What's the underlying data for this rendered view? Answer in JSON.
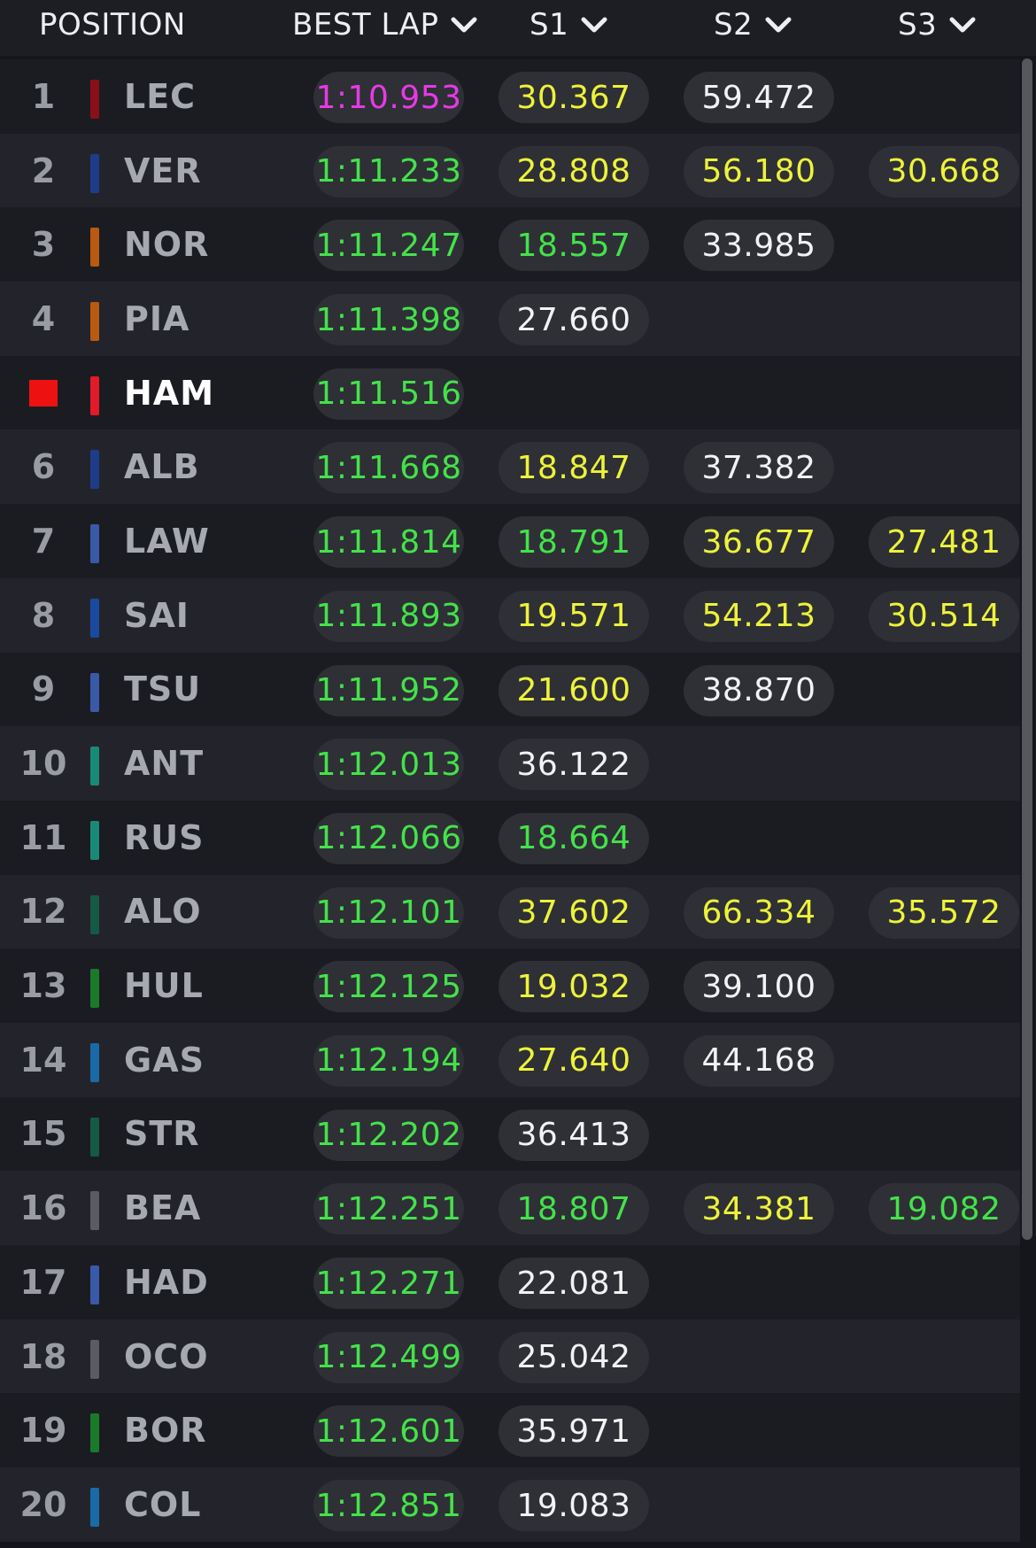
{
  "header": {
    "position": "POSITION",
    "best_lap": "BEST LAP",
    "s1": "S1",
    "s2": "S2",
    "s3": "S3"
  },
  "colors": {
    "green": "#44e24a",
    "yellow": "#eef23a",
    "purple": "#e73ae6",
    "white": "#f2f2f4",
    "red_flag": "#ee1111"
  },
  "rows": [
    {
      "pos": "1",
      "code": "LEC",
      "team_color": "#8a0f1a",
      "best": "1:10.953",
      "best_color": "purple",
      "s1": "30.367",
      "s1_color": "yellow",
      "s2": "59.472",
      "s2_color": "white",
      "s3": "",
      "s3_color": ""
    },
    {
      "pos": "2",
      "code": "VER",
      "team_color": "#1f3c8a",
      "best": "1:11.233",
      "best_color": "green",
      "s1": "28.808",
      "s1_color": "yellow",
      "s2": "56.180",
      "s2_color": "yellow",
      "s3": "30.668",
      "s3_color": "yellow"
    },
    {
      "pos": "3",
      "code": "NOR",
      "team_color": "#b85a12",
      "best": "1:11.247",
      "best_color": "green",
      "s1": "18.557",
      "s1_color": "green",
      "s2": "33.985",
      "s2_color": "white",
      "s3": "",
      "s3_color": ""
    },
    {
      "pos": "4",
      "code": "PIA",
      "team_color": "#b85a12",
      "best": "1:11.398",
      "best_color": "green",
      "s1": "27.660",
      "s1_color": "white",
      "s2": "",
      "s2_color": "",
      "s3": "",
      "s3_color": ""
    },
    {
      "pos": "",
      "pos_marker": "red-square",
      "code": "HAM",
      "highlight": true,
      "team_color": "#e21a2a",
      "best": "1:11.516",
      "best_color": "green",
      "s1": "",
      "s1_color": "",
      "s2": "",
      "s2_color": "",
      "s3": "",
      "s3_color": ""
    },
    {
      "pos": "6",
      "code": "ALB",
      "team_color": "#1f3c8a",
      "best": "1:11.668",
      "best_color": "green",
      "s1": "18.847",
      "s1_color": "yellow",
      "s2": "37.382",
      "s2_color": "white",
      "s3": "",
      "s3_color": ""
    },
    {
      "pos": "7",
      "code": "LAW",
      "team_color": "#3a5aa8",
      "best": "1:11.814",
      "best_color": "green",
      "s1": "18.791",
      "s1_color": "green",
      "s2": "36.677",
      "s2_color": "yellow",
      "s3": "27.481",
      "s3_color": "yellow"
    },
    {
      "pos": "8",
      "code": "SAI",
      "team_color": "#1a4aa0",
      "best": "1:11.893",
      "best_color": "green",
      "s1": "19.571",
      "s1_color": "yellow",
      "s2": "54.213",
      "s2_color": "yellow",
      "s3": "30.514",
      "s3_color": "yellow"
    },
    {
      "pos": "9",
      "code": "TSU",
      "team_color": "#3a5aa8",
      "best": "1:11.952",
      "best_color": "green",
      "s1": "21.600",
      "s1_color": "yellow",
      "s2": "38.870",
      "s2_color": "white",
      "s3": "",
      "s3_color": ""
    },
    {
      "pos": "10",
      "code": "ANT",
      "team_color": "#1a8a78",
      "best": "1:12.013",
      "best_color": "green",
      "s1": "36.122",
      "s1_color": "white",
      "s2": "",
      "s2_color": "",
      "s3": "",
      "s3_color": ""
    },
    {
      "pos": "11",
      "code": "RUS",
      "team_color": "#1a8a78",
      "best": "1:12.066",
      "best_color": "green",
      "s1": "18.664",
      "s1_color": "green",
      "s2": "",
      "s2_color": "",
      "s3": "",
      "s3_color": ""
    },
    {
      "pos": "12",
      "code": "ALO",
      "team_color": "#155a44",
      "best": "1:12.101",
      "best_color": "green",
      "s1": "37.602",
      "s1_color": "yellow",
      "s2": "66.334",
      "s2_color": "yellow",
      "s3": "35.572",
      "s3_color": "yellow"
    },
    {
      "pos": "13",
      "code": "HUL",
      "team_color": "#1a7a2a",
      "best": "1:12.125",
      "best_color": "green",
      "s1": "19.032",
      "s1_color": "yellow",
      "s2": "39.100",
      "s2_color": "white",
      "s3": "",
      "s3_color": ""
    },
    {
      "pos": "14",
      "code": "GAS",
      "team_color": "#1a6aa8",
      "best": "1:12.194",
      "best_color": "green",
      "s1": "27.640",
      "s1_color": "yellow",
      "s2": "44.168",
      "s2_color": "white",
      "s3": "",
      "s3_color": ""
    },
    {
      "pos": "15",
      "code": "STR",
      "team_color": "#155a44",
      "best": "1:12.202",
      "best_color": "green",
      "s1": "36.413",
      "s1_color": "white",
      "s2": "",
      "s2_color": "",
      "s3": "",
      "s3_color": ""
    },
    {
      "pos": "16",
      "code": "BEA",
      "team_color": "#5a5c62",
      "best": "1:12.251",
      "best_color": "green",
      "s1": "18.807",
      "s1_color": "green",
      "s2": "34.381",
      "s2_color": "yellow",
      "s3": "19.082",
      "s3_color": "green"
    },
    {
      "pos": "17",
      "code": "HAD",
      "team_color": "#3a5aa8",
      "best": "1:12.271",
      "best_color": "green",
      "s1": "22.081",
      "s1_color": "white",
      "s2": "",
      "s2_color": "",
      "s3": "",
      "s3_color": ""
    },
    {
      "pos": "18",
      "code": "OCO",
      "team_color": "#5a5c62",
      "best": "1:12.499",
      "best_color": "green",
      "s1": "25.042",
      "s1_color": "white",
      "s2": "",
      "s2_color": "",
      "s3": "",
      "s3_color": ""
    },
    {
      "pos": "19",
      "code": "BOR",
      "team_color": "#1a7a2a",
      "best": "1:12.601",
      "best_color": "green",
      "s1": "35.971",
      "s1_color": "white",
      "s2": "",
      "s2_color": "",
      "s3": "",
      "s3_color": ""
    },
    {
      "pos": "20",
      "code": "COL",
      "team_color": "#1a6aa8",
      "best": "1:12.851",
      "best_color": "green",
      "s1": "19.083",
      "s1_color": "white",
      "s2": "",
      "s2_color": "",
      "s3": "",
      "s3_color": ""
    }
  ]
}
